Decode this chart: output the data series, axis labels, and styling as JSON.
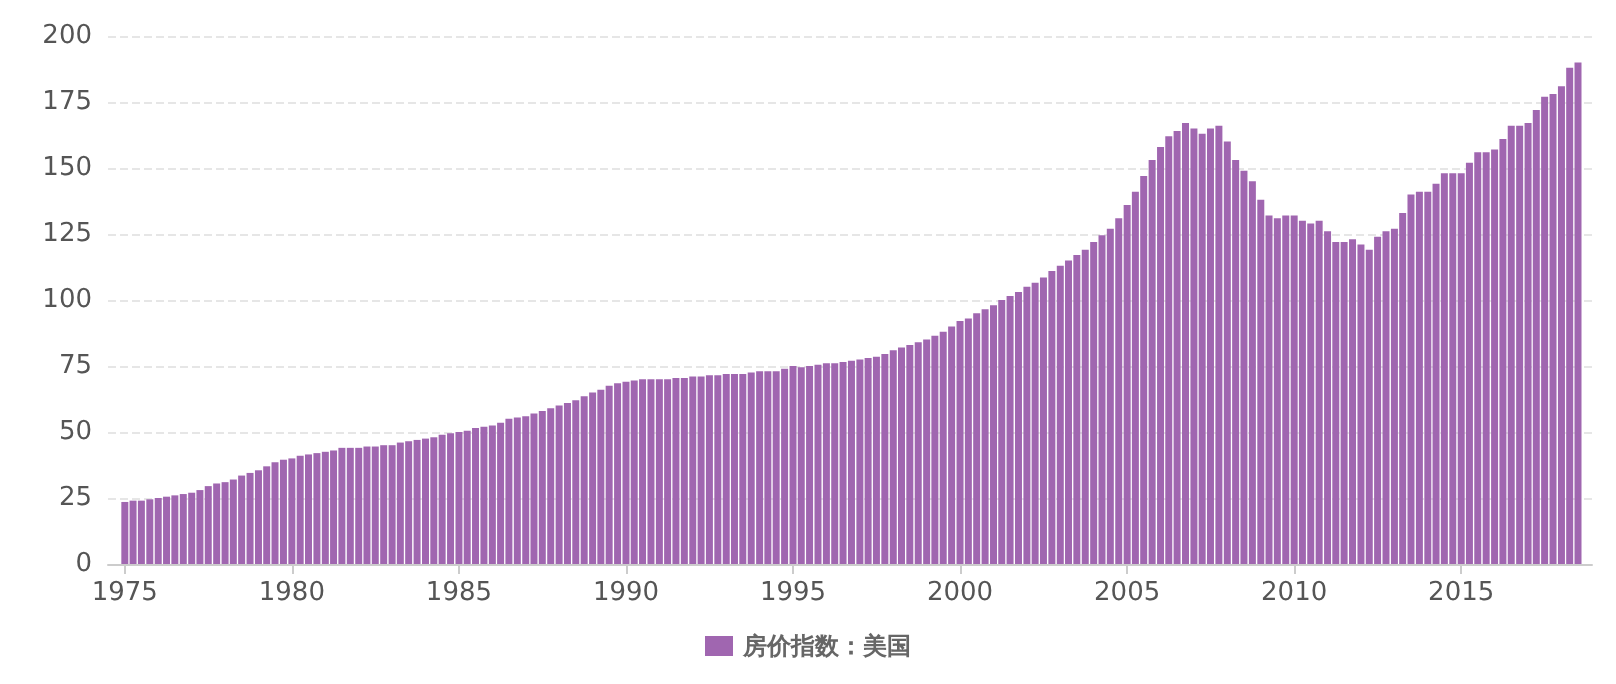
{
  "chart_data": {
    "type": "bar",
    "x": [
      "1975-01",
      "1975-04",
      "1975-07",
      "1975-10",
      "1976-01",
      "1976-04",
      "1976-07",
      "1976-10",
      "1977-01",
      "1977-04",
      "1977-07",
      "1977-10",
      "1978-01",
      "1978-04",
      "1978-07",
      "1978-10",
      "1979-01",
      "1979-04",
      "1979-07",
      "1979-10",
      "1980-01",
      "1980-04",
      "1980-07",
      "1980-10",
      "1981-01",
      "1981-04",
      "1981-07",
      "1981-10",
      "1982-01",
      "1982-04",
      "1982-07",
      "1982-10",
      "1983-01",
      "1983-04",
      "1983-07",
      "1983-10",
      "1984-01",
      "1984-04",
      "1984-07",
      "1984-10",
      "1985-01",
      "1985-04",
      "1985-07",
      "1985-10",
      "1986-01",
      "1986-04",
      "1986-07",
      "1986-10",
      "1987-01",
      "1987-04",
      "1987-07",
      "1987-10",
      "1988-01",
      "1988-04",
      "1988-07",
      "1988-10",
      "1989-01",
      "1989-04",
      "1989-07",
      "1989-10",
      "1990-01",
      "1990-04",
      "1990-07",
      "1990-10",
      "1991-01",
      "1991-04",
      "1991-07",
      "1991-10",
      "1992-01",
      "1992-04",
      "1992-07",
      "1992-10",
      "1993-01",
      "1993-04",
      "1993-07",
      "1993-10",
      "1994-01",
      "1994-04",
      "1994-07",
      "1994-10",
      "1995-01",
      "1995-04",
      "1995-07",
      "1995-10",
      "1996-01",
      "1996-04",
      "1996-07",
      "1996-10",
      "1997-01",
      "1997-04",
      "1997-07",
      "1997-10",
      "1998-01",
      "1998-04",
      "1998-07",
      "1998-10",
      "1999-01",
      "1999-04",
      "1999-07",
      "1999-10",
      "2000-01",
      "2000-04",
      "2000-07",
      "2000-10",
      "2001-01",
      "2001-04",
      "2001-07",
      "2001-10",
      "2002-01",
      "2002-04",
      "2002-07",
      "2002-10",
      "2003-01",
      "2003-04",
      "2003-07",
      "2003-10",
      "2004-01",
      "2004-04",
      "2004-07",
      "2004-10",
      "2005-01",
      "2005-04",
      "2005-07",
      "2005-10",
      "2006-01",
      "2006-04",
      "2006-07",
      "2006-10",
      "2007-01",
      "2007-04",
      "2007-07",
      "2007-10",
      "2008-01",
      "2008-04",
      "2008-07",
      "2008-10",
      "2009-01",
      "2009-04",
      "2009-07",
      "2009-10",
      "2010-01",
      "2010-04",
      "2010-07",
      "2010-10",
      "2011-01",
      "2011-04",
      "2011-07",
      "2011-10",
      "2012-01",
      "2012-04",
      "2012-07",
      "2012-10",
      "2013-01",
      "2013-04",
      "2013-07",
      "2013-10",
      "2014-01",
      "2014-04",
      "2014-07",
      "2014-10",
      "2015-01",
      "2015-04",
      "2015-07",
      "2015-10",
      "2016-01",
      "2016-04",
      "2016-07",
      "2016-10",
      "2017-01",
      "2017-04",
      "2017-07",
      "2017-10",
      "2018-01",
      "2018-04",
      "2018-07"
    ],
    "series": [
      {
        "name": "房价指数：美国",
        "color": "#a066b0",
        "values": [
          23.5,
          24,
          24,
          24.5,
          25,
          25.5,
          26,
          26.5,
          27,
          28,
          29.5,
          30.5,
          31,
          32,
          33.5,
          34.5,
          35.5,
          37,
          38.5,
          39.5,
          40,
          41,
          41.5,
          42,
          42.5,
          43,
          44,
          44,
          44,
          44.5,
          44.5,
          45,
          45,
          46,
          46.5,
          47,
          47.5,
          48,
          49,
          49.5,
          50,
          50.5,
          51.5,
          52,
          52.5,
          53.5,
          55,
          55.5,
          56,
          57,
          58,
          59,
          60,
          61,
          62,
          63.5,
          65,
          66,
          67.5,
          68.5,
          69,
          69.5,
          70,
          70,
          70,
          70,
          70.5,
          70.5,
          71,
          71,
          71.5,
          71.5,
          72,
          72,
          72,
          72.5,
          73,
          73,
          73,
          74,
          75,
          74.5,
          75,
          75.5,
          76,
          76,
          76.5,
          77,
          77.5,
          78,
          78.5,
          79.5,
          81,
          82,
          83,
          84,
          85,
          86.5,
          88,
          90,
          92,
          93,
          95,
          96.5,
          98,
          100,
          101.5,
          103,
          105,
          106.5,
          108.5,
          111,
          113,
          115,
          117,
          119,
          122,
          124.5,
          127,
          131,
          136,
          141,
          147,
          153,
          158,
          162,
          164,
          167,
          165,
          163,
          165,
          166,
          160,
          153,
          149,
          145,
          138,
          132,
          131,
          132,
          132,
          130,
          129,
          130,
          126,
          122,
          122,
          123,
          121,
          119,
          124,
          126,
          127,
          133,
          140,
          141,
          141,
          144,
          148,
          148,
          148,
          152,
          156,
          156,
          157,
          161,
          166,
          166,
          167,
          172,
          177,
          178,
          181,
          188,
          190
        ]
      }
    ],
    "xlim": [
      "1974-07",
      "2018-12"
    ],
    "xticks": [
      "1975",
      "1980",
      "1985",
      "1990",
      "1995",
      "2000",
      "2005",
      "2010",
      "2015"
    ],
    "ylim": [
      0,
      200
    ],
    "yticks": [
      0,
      25,
      50,
      75,
      100,
      125,
      150,
      175,
      200
    ],
    "grid": "y",
    "legend": "bottom"
  }
}
